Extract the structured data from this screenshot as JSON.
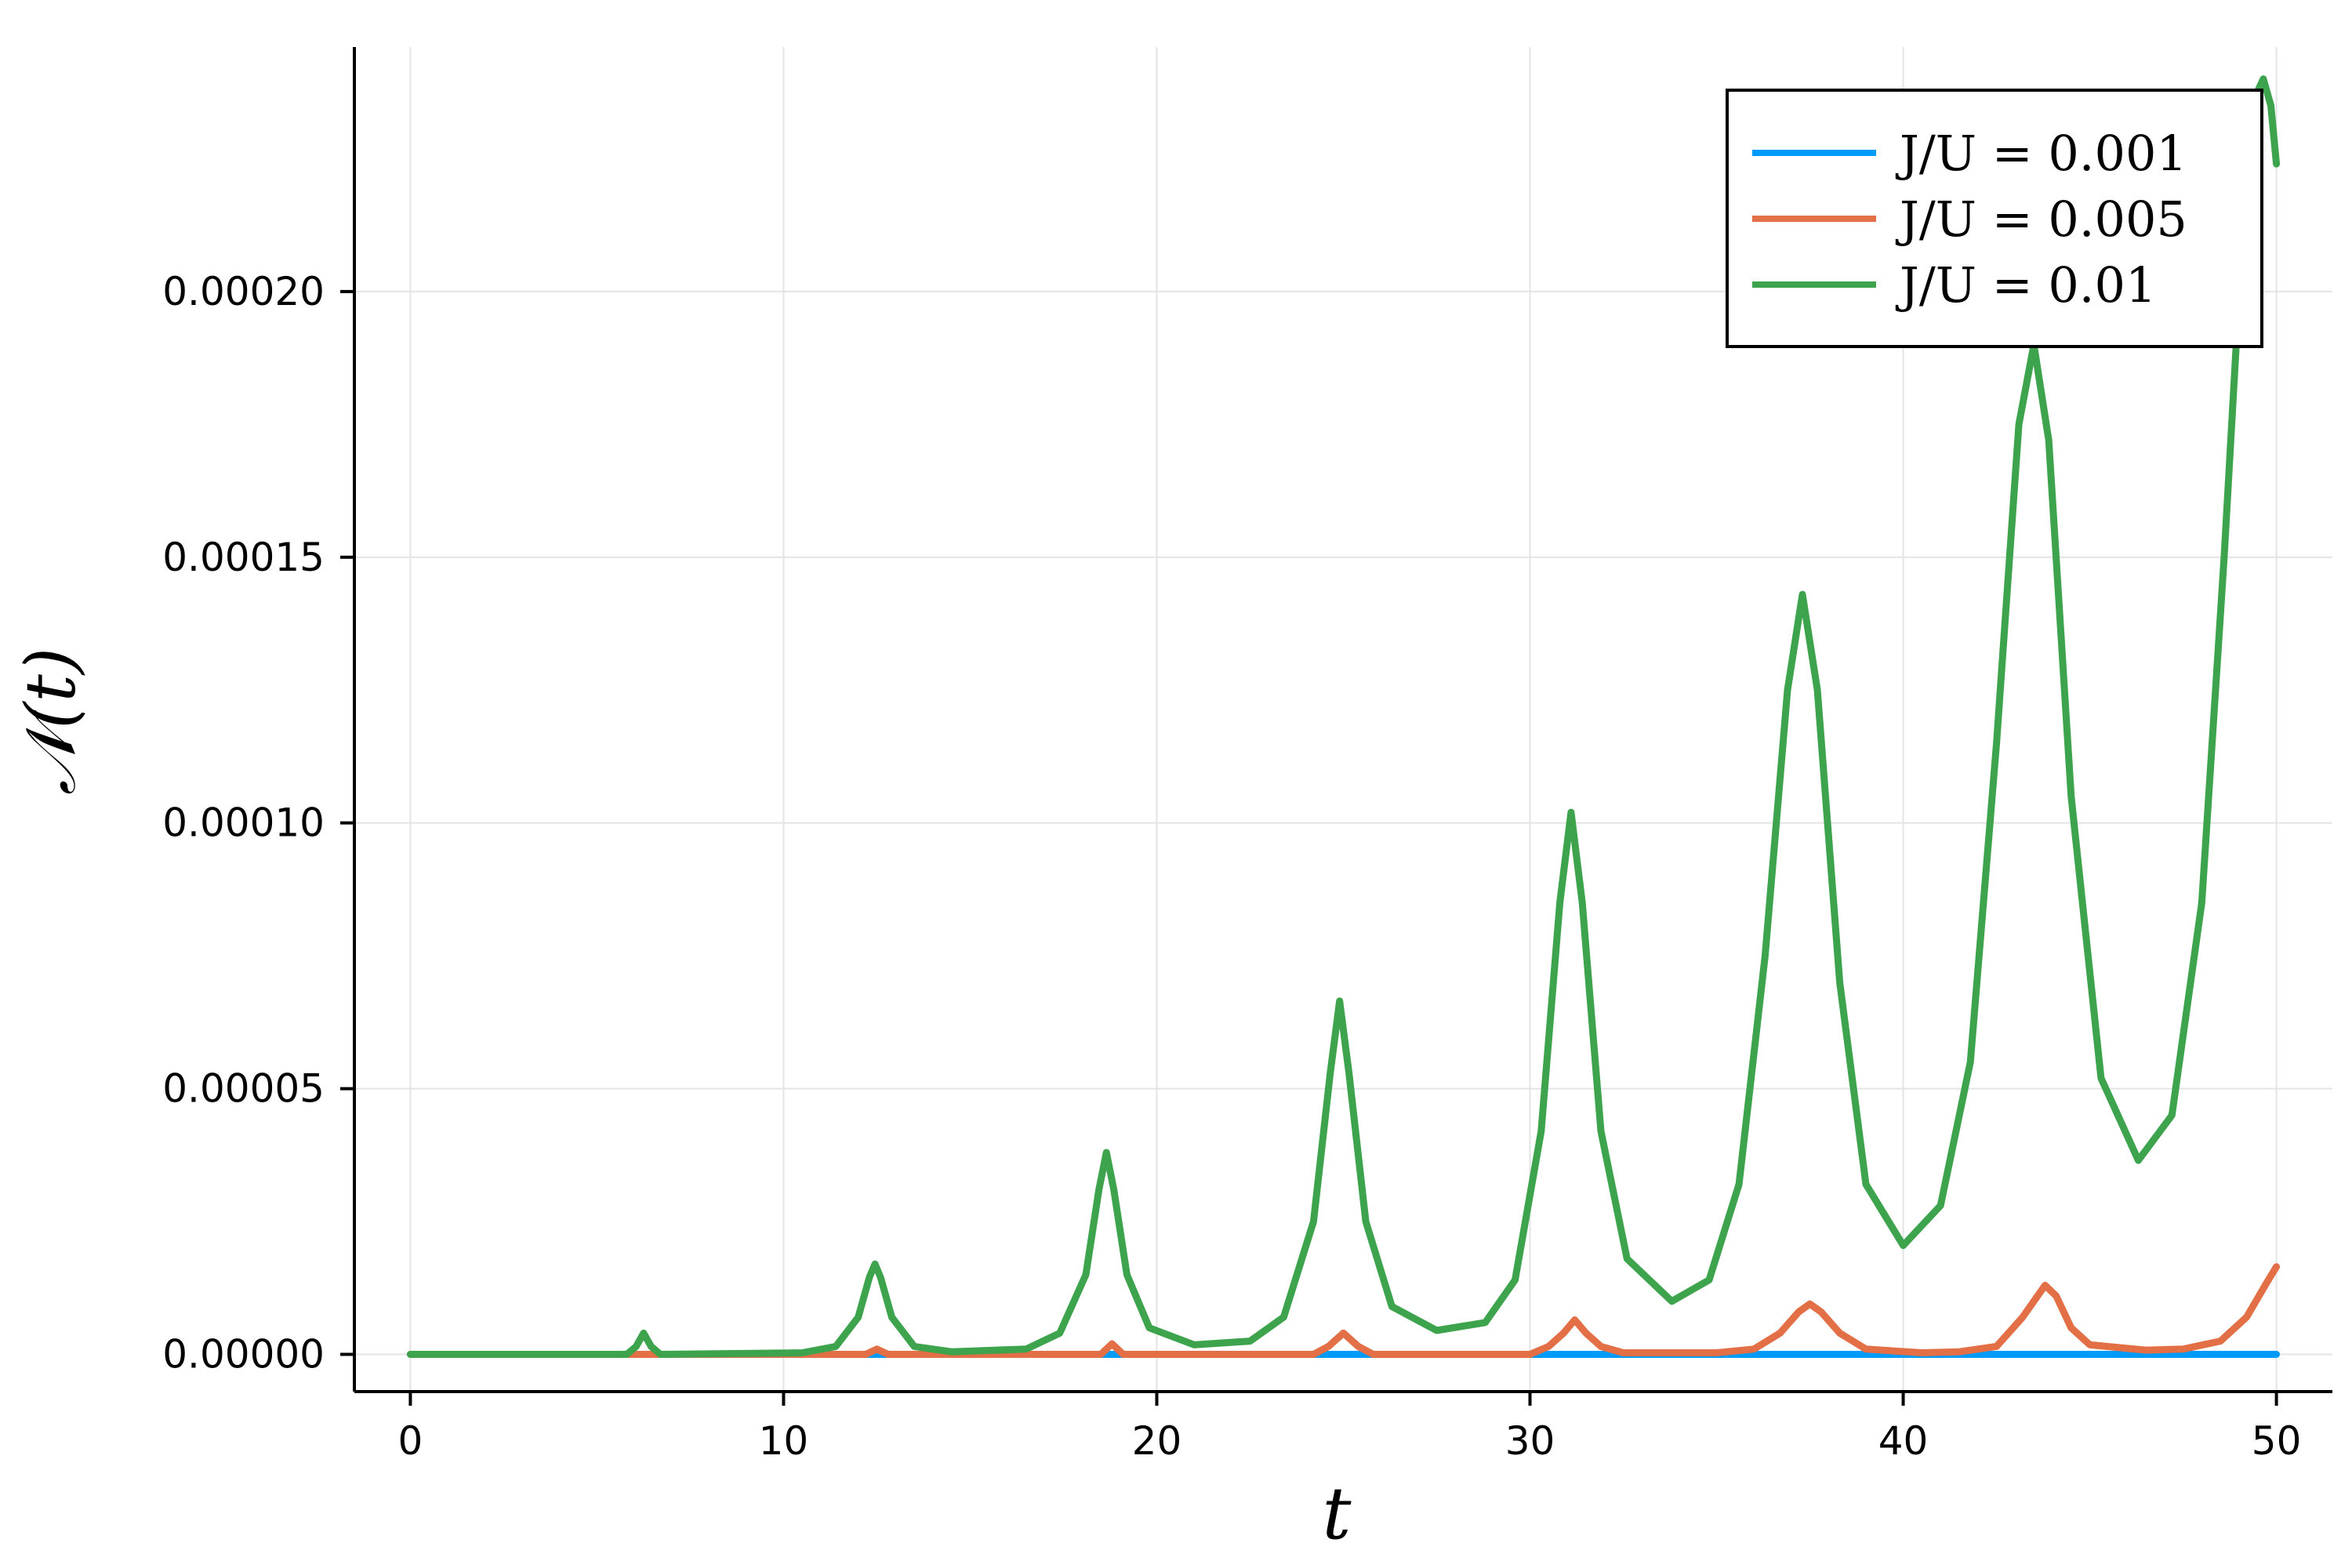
{
  "chart_data": {
    "type": "line",
    "title": "",
    "xlabel": "t",
    "ylabel": "𝒩(t)",
    "xlim": [
      -1.5,
      51.5
    ],
    "ylim": [
      -7e-06,
      0.000246
    ],
    "x_ticks": [
      0,
      10,
      20,
      30,
      40,
      50
    ],
    "x_tick_labels": [
      "0",
      "10",
      "20",
      "30",
      "40",
      "50"
    ],
    "y_ticks": [
      0,
      5e-05,
      0.0001,
      0.00015,
      0.0002
    ],
    "y_tick_labels": [
      "0.00000",
      "0.00005",
      "0.00010",
      "0.00015",
      "0.00020"
    ],
    "grid": true,
    "legend_position": "top-right",
    "series": [
      {
        "name": "J/U = 0.001",
        "color": "#009af9",
        "points": [
          [
            0,
            0
          ],
          [
            50,
            0
          ]
        ]
      },
      {
        "name": "J/U = 0.005",
        "color": "#e26f46",
        "points": [
          [
            0,
            0
          ],
          [
            12.2,
            0
          ],
          [
            12.5,
            1e-06
          ],
          [
            12.8,
            0
          ],
          [
            18.5,
            0
          ],
          [
            18.8,
            2e-06
          ],
          [
            19.1,
            0
          ],
          [
            24.2,
            0
          ],
          [
            24.6,
            1.5e-06
          ],
          [
            25.0,
            4e-06
          ],
          [
            25.4,
            1.5e-06
          ],
          [
            25.8,
            0
          ],
          [
            30.0,
            0
          ],
          [
            30.5,
            1.5e-06
          ],
          [
            30.9,
            4e-06
          ],
          [
            31.2,
            6.5e-06
          ],
          [
            31.5,
            4e-06
          ],
          [
            31.9,
            1.5e-06
          ],
          [
            32.5,
            3e-07
          ],
          [
            35.0,
            3e-07
          ],
          [
            36.0,
            1e-06
          ],
          [
            36.7,
            4e-06
          ],
          [
            37.2,
            8e-06
          ],
          [
            37.5,
            9.5e-06
          ],
          [
            37.8,
            8e-06
          ],
          [
            38.3,
            4e-06
          ],
          [
            39.0,
            1e-06
          ],
          [
            40.5,
            3e-07
          ],
          [
            41.5,
            5e-07
          ],
          [
            42.5,
            1.5e-06
          ],
          [
            43.2,
            7e-06
          ],
          [
            43.8,
            1.3e-05
          ],
          [
            44.1,
            1.1e-05
          ],
          [
            44.5,
            5e-06
          ],
          [
            45.0,
            1.8e-06
          ],
          [
            46.5,
            8e-07
          ],
          [
            47.5,
            1e-06
          ],
          [
            48.5,
            2.5e-06
          ],
          [
            49.2,
            7e-06
          ],
          [
            49.7,
            1.3e-05
          ],
          [
            50,
            1.65e-05
          ]
        ]
      },
      {
        "name": "J/U = 0.01",
        "color": "#3da44d",
        "points": [
          [
            0,
            0
          ],
          [
            5.8,
            0
          ],
          [
            6.05,
            1.5e-06
          ],
          [
            6.25,
            4e-06
          ],
          [
            6.45,
            1.5e-06
          ],
          [
            6.7,
            0
          ],
          [
            10.5,
            3e-07
          ],
          [
            11.4,
            1.5e-06
          ],
          [
            12.0,
            7e-06
          ],
          [
            12.3,
            1.45e-05
          ],
          [
            12.45,
            1.7e-05
          ],
          [
            12.6,
            1.45e-05
          ],
          [
            12.9,
            7e-06
          ],
          [
            13.5,
            1.5e-06
          ],
          [
            14.5,
            5e-07
          ],
          [
            16.5,
            1e-06
          ],
          [
            17.4,
            4e-06
          ],
          [
            18.1,
            1.5e-05
          ],
          [
            18.45,
            3.1e-05
          ],
          [
            18.65,
            3.8e-05
          ],
          [
            18.85,
            3.1e-05
          ],
          [
            19.2,
            1.5e-05
          ],
          [
            19.8,
            5e-06
          ],
          [
            21.0,
            1.8e-06
          ],
          [
            22.5,
            2.5e-06
          ],
          [
            23.4,
            7e-06
          ],
          [
            24.2,
            2.5e-05
          ],
          [
            24.65,
            5.3e-05
          ],
          [
            24.9,
            6.65e-05
          ],
          [
            25.15,
            5.3e-05
          ],
          [
            25.6,
            2.5e-05
          ],
          [
            26.3,
            9e-06
          ],
          [
            27.5,
            4.5e-06
          ],
          [
            28.8,
            6e-06
          ],
          [
            29.6,
            1.4e-05
          ],
          [
            30.3,
            4.2e-05
          ],
          [
            30.8,
            8.5e-05
          ],
          [
            31.1,
            0.000102
          ],
          [
            31.4,
            8.5e-05
          ],
          [
            31.9,
            4.2e-05
          ],
          [
            32.6,
            1.8e-05
          ],
          [
            33.8,
            1e-05
          ],
          [
            34.8,
            1.4e-05
          ],
          [
            35.6,
            3.2e-05
          ],
          [
            36.3,
            7.5e-05
          ],
          [
            36.9,
            0.000125
          ],
          [
            37.3,
            0.000143
          ],
          [
            37.7,
            0.000125
          ],
          [
            38.3,
            7e-05
          ],
          [
            39.0,
            3.2e-05
          ],
          [
            40.0,
            2.05e-05
          ],
          [
            41.0,
            2.8e-05
          ],
          [
            41.8,
            5.5e-05
          ],
          [
            42.5,
            0.000115
          ],
          [
            43.1,
            0.000175
          ],
          [
            43.5,
            0.00019
          ],
          [
            43.9,
            0.000172
          ],
          [
            44.5,
            0.000105
          ],
          [
            45.3,
            5.2e-05
          ],
          [
            46.3,
            3.65e-05
          ],
          [
            47.2,
            4.5e-05
          ],
          [
            48.0,
            8.5e-05
          ],
          [
            48.6,
            0.00015
          ],
          [
            49.1,
            0.000212
          ],
          [
            49.45,
            0.000237
          ],
          [
            49.65,
            0.00024
          ],
          [
            49.85,
            0.000235
          ],
          [
            50,
            0.000224
          ]
        ]
      }
    ]
  }
}
